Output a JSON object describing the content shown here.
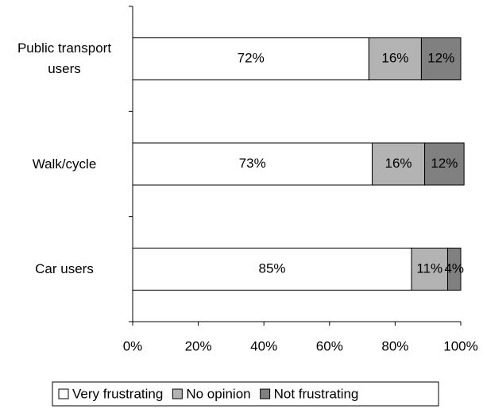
{
  "chart_data": {
    "type": "stacked_barh",
    "categories": [
      "Public transport users",
      "Walk/cycle",
      "Car users"
    ],
    "series": [
      {
        "name": "Very frustrating",
        "color": "#ffffff",
        "values": [
          72,
          73,
          85
        ],
        "value_labels": [
          "72%",
          "73%",
          "85%"
        ]
      },
      {
        "name": "No opinion",
        "color": "#b3b3b3",
        "values": [
          16,
          16,
          11
        ],
        "value_labels": [
          "16%",
          "16%",
          "11%"
        ]
      },
      {
        "name": "Not frustrating",
        "color": "#808080",
        "values": [
          12,
          12,
          4
        ],
        "value_labels": [
          "12%",
          "12%",
          "4%"
        ]
      }
    ],
    "xlim": [
      0,
      100
    ],
    "xticks": [
      {
        "value": 0,
        "label": "0%"
      },
      {
        "value": 20,
        "label": "20%"
      },
      {
        "value": 40,
        "label": "40%"
      },
      {
        "value": 60,
        "label": "60%"
      },
      {
        "value": 80,
        "label": "80%"
      },
      {
        "value": 100,
        "label": "100%"
      }
    ],
    "legend": "bottom"
  }
}
